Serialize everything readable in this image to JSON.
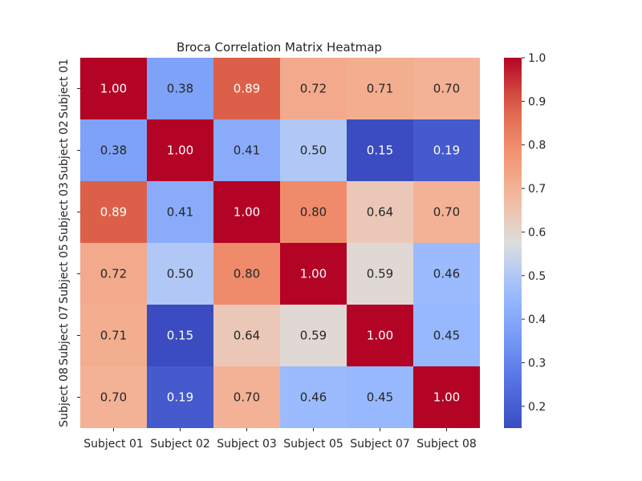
{
  "chart_data": {
    "type": "heatmap",
    "title": "Broca Correlation Matrix Heatmap",
    "xlabel": "",
    "ylabel": "",
    "row_labels": [
      "Subject 01",
      "Subject 02",
      "Subject 03",
      "Subject 05",
      "Subject 07",
      "Subject 08"
    ],
    "col_labels": [
      "Subject 01",
      "Subject 02",
      "Subject 03",
      "Subject 05",
      "Subject 07",
      "Subject 08"
    ],
    "values": [
      [
        1.0,
        0.38,
        0.89,
        0.72,
        0.71,
        0.7
      ],
      [
        0.38,
        1.0,
        0.41,
        0.5,
        0.15,
        0.19
      ],
      [
        0.89,
        0.41,
        1.0,
        0.8,
        0.64,
        0.7
      ],
      [
        0.72,
        0.5,
        0.8,
        1.0,
        0.59,
        0.46
      ],
      [
        0.71,
        0.15,
        0.64,
        0.59,
        1.0,
        0.45
      ],
      [
        0.7,
        0.19,
        0.7,
        0.46,
        0.45,
        1.0
      ]
    ],
    "value_format_decimals": 2,
    "colormap": "coolwarm",
    "vmin": 0.15,
    "vmax": 1.0,
    "colorbar_ticks": [
      "0.2",
      "0.3",
      "0.4",
      "0.5",
      "0.6",
      "0.7",
      "0.8",
      "0.9",
      "1.0"
    ],
    "colors": {
      "low": "#3b4cc0",
      "mid": "#dddddd",
      "high": "#b40426"
    }
  }
}
